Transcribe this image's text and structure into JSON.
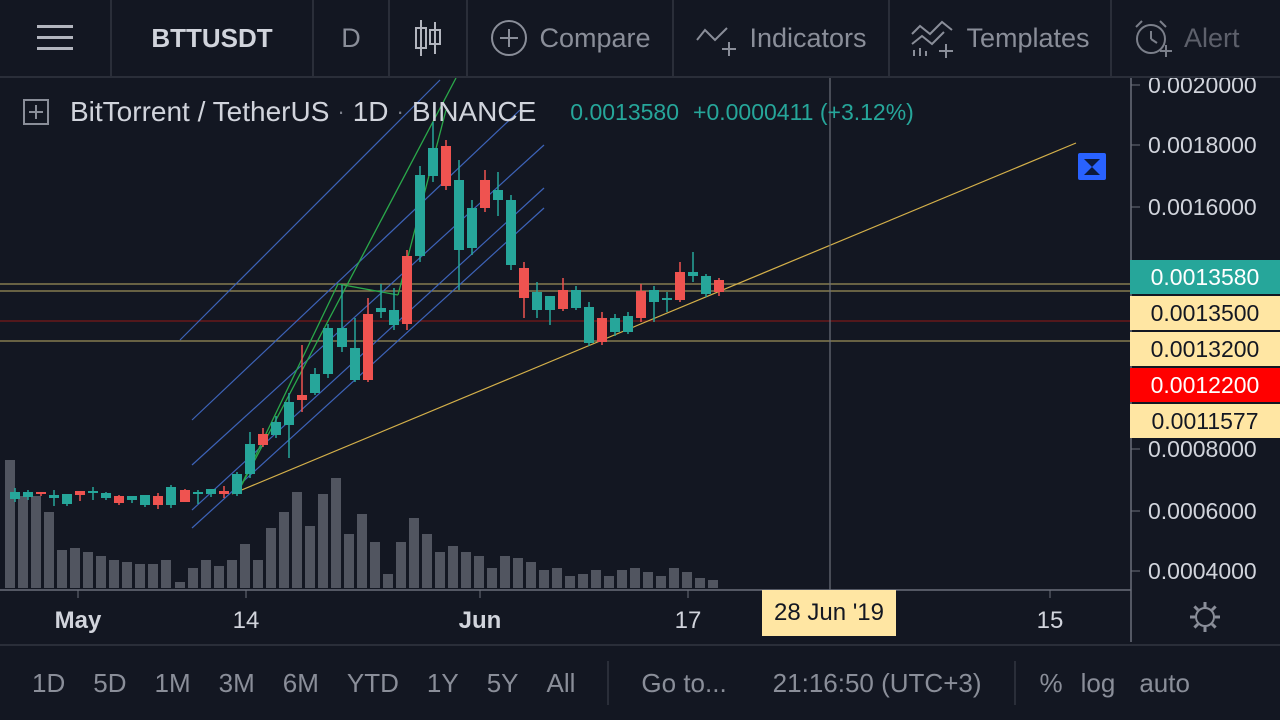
{
  "toolbar": {
    "symbol": "BTTUSDT",
    "interval": "D",
    "compare_label": "Compare",
    "indicators_label": "Indicators",
    "templates_label": "Templates",
    "alert_label": "Alert"
  },
  "legend": {
    "name": "BitTorrent / TetherUS",
    "interval": "1D",
    "exchange": "BINANCE",
    "price": "0.0013580",
    "change": "+0.0000411 (+3.12%)"
  },
  "price_axis": {
    "ticks": [
      "0.0020000",
      "0.0018000",
      "0.0016000",
      "0.0008000",
      "0.0006000",
      "0.0004000"
    ],
    "tags": [
      {
        "label": "0.0013580",
        "bg": "#26a69a",
        "fg": "#ffffff"
      },
      {
        "label": "0.0013500",
        "bg": "#ffe6a3",
        "fg": "#131722"
      },
      {
        "label": "0.0013200",
        "bg": "#ffe6a3",
        "fg": "#131722"
      },
      {
        "label": "0.0012200",
        "bg": "#ff0000",
        "fg": "#ffffff"
      },
      {
        "label": "0.0011577",
        "bg": "#ffe6a3",
        "fg": "#131722"
      }
    ]
  },
  "time_axis": {
    "labels": [
      "May",
      "14",
      "Jun",
      "17",
      "15"
    ],
    "crosshair_date": "28 Jun '19"
  },
  "bottom_bar": {
    "ranges": [
      "1D",
      "5D",
      "1M",
      "3M",
      "6M",
      "YTD",
      "1Y",
      "5Y",
      "All"
    ],
    "goto_label": "Go to...",
    "clock": "21:16:50 (UTC+3)",
    "percent_label": "%",
    "log_label": "log",
    "auto_label": "auto"
  },
  "colors": {
    "up": "#26a69a",
    "down": "#ef5350",
    "background": "#131722",
    "trendline": "#d4b04a",
    "channel": "#3d63b8"
  },
  "icons": [
    "menu-icon",
    "candles-icon",
    "plus-circle-icon",
    "indicators-icon",
    "templates-icon",
    "alert-clock-icon",
    "add-box-icon",
    "gear-icon",
    "scroll-to-end-icon"
  ]
}
